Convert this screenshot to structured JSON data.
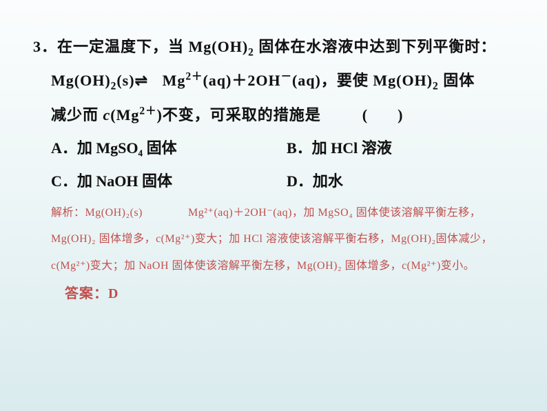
{
  "question": {
    "number": "3．",
    "line1_a": "在一定温度下，当 Mg(OH)",
    "line1_a_sub": "2",
    "line1_b": " 固体在水溶液中达到下列平衡时：",
    "line2_eq_lhs": "Mg(OH)",
    "line2_eq_lhs_sub": "2",
    "line2_eq_lhs_state": "(s)",
    "line2_eq_arrow": "⇌",
    "line2_eq_rhs_a": "Mg",
    "line2_eq_rhs_a_sup": "2＋",
    "line2_eq_rhs_a_state": "(aq)＋2OH",
    "line2_eq_rhs_b_sup": "－",
    "line2_eq_rhs_b_state": "(aq)，要使 Mg(OH)",
    "line2_eq_rhs_c_sub": "2",
    "line2_tail": " 固体",
    "line3_a": "减少而 ",
    "line3_c": "c",
    "line3_b": "(Mg",
    "line3_sup": "2＋",
    "line3_d": ")不变，可采取的措施是",
    "line3_paren": "(　　)"
  },
  "options": {
    "A": "A．加 MgSO₄ 固体",
    "B": "B．加 HCl 溶液",
    "C": "C．加 NaOH 固体",
    "D": "D．加水"
  },
  "explain": {
    "label": "解析：",
    "text": "Mg(OH)₂(s)　　　　Mg²⁺(aq)＋2OH⁻(aq)，加 MgSO₄ 固体使该溶解平衡左移，Mg(OH)₂ 固体增多，c(Mg²⁺)变大；加 HCl 溶液使该溶解平衡右移，Mg(OH)₂固体减少，c(Mg²⁺)变大；加 NaOH 固体使该溶解平衡左移，Mg(OH)₂ 固体增多，c(Mg²⁺)变小。"
  },
  "answer": {
    "label": "答案：",
    "value": "D"
  },
  "colors": {
    "accent": "#c0504d",
    "text": "#111111",
    "bg_top": "#fbfdfd",
    "bg_bottom": "#d9ebee"
  },
  "fontsize": {
    "question": 22,
    "options": 22,
    "explain": 16,
    "answer": 20
  }
}
